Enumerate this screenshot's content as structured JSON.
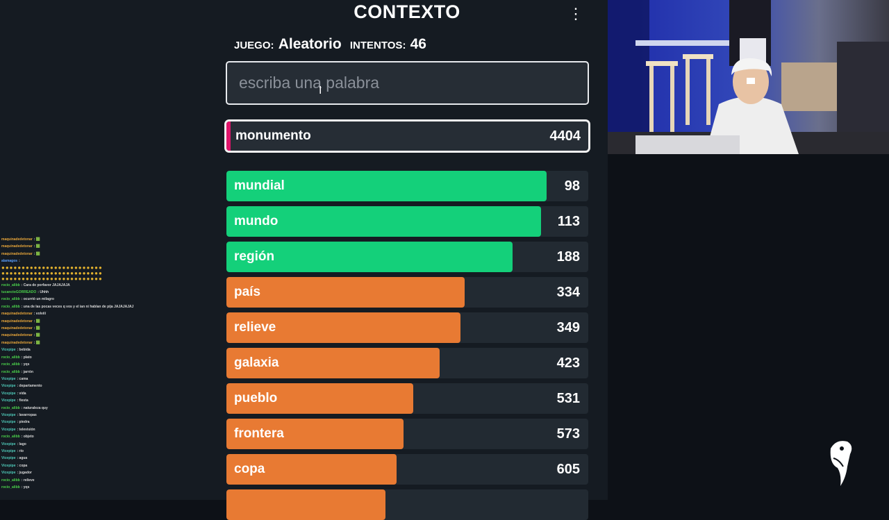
{
  "game": {
    "title": "CONTEXTO",
    "menu_icon": "kebab-menu-icon",
    "game_label": "JUEGO:",
    "game_value": "Aleatorio",
    "attempts_label": "INTENTOS:",
    "attempts_value": "46",
    "search_placeholder": "escriba una palabra",
    "current_guess": {
      "word": "monumento",
      "rank": "4404"
    },
    "colors": {
      "green": "#14d07a",
      "orange": "#e87a33",
      "pink": "#e0146a",
      "row_bg": "#222a32"
    },
    "guesses": [
      {
        "word": "mundial",
        "rank": "98",
        "fill": 0.885,
        "color": "green"
      },
      {
        "word": "mundo",
        "rank": "113",
        "fill": 0.869,
        "color": "green"
      },
      {
        "word": "región",
        "rank": "188",
        "fill": 0.791,
        "color": "green"
      },
      {
        "word": "país",
        "rank": "334",
        "fill": 0.658,
        "color": "orange"
      },
      {
        "word": "relieve",
        "rank": "349",
        "fill": 0.646,
        "color": "orange"
      },
      {
        "word": "galaxia",
        "rank": "423",
        "fill": 0.589,
        "color": "orange"
      },
      {
        "word": "pueblo",
        "rank": "531",
        "fill": 0.516,
        "color": "orange"
      },
      {
        "word": "frontera",
        "rank": "573",
        "fill": 0.489,
        "color": "orange"
      },
      {
        "word": "copa",
        "rank": "605",
        "fill": 0.47,
        "color": "orange"
      }
    ]
  },
  "chat": {
    "messages": [
      {
        "user": "maquinadedetonar",
        "text": ": 🟩",
        "color": "o"
      },
      {
        "user": "maquinadedetonar",
        "text": ": 🟩",
        "color": "o"
      },
      {
        "user": "maquinadedetonar",
        "text": ": 🟩",
        "color": "o"
      },
      {
        "user": "alamagos",
        "text": ":",
        "color": "b"
      },
      {
        "user": "rocio_alibb",
        "text": ": Cara de porfavor JAJAJAJA",
        "color": "g"
      },
      {
        "user": "tucanctoGORREADO",
        "text": ": Uhhh",
        "color": "g"
      },
      {
        "user": "rocio_alibb",
        "text": ": ocurrió un milagro",
        "color": "g"
      },
      {
        "user": "rocio_alibb",
        "text": ": una de las pocas veces q vos y el ian ni hablan de pija JAJAJAJAJ",
        "color": "g"
      },
      {
        "user": "maquinadedetonar",
        "text": ": volvííí",
        "color": "o"
      },
      {
        "user": "maquinadedetonar",
        "text": ": 🟩",
        "color": "o"
      },
      {
        "user": "maquinadedetonar",
        "text": ": 🟩",
        "color": "o"
      },
      {
        "user": "maquinadedetonar",
        "text": ": 🟩",
        "color": "o"
      },
      {
        "user": "maquinadedetonar",
        "text": ": 🟩",
        "color": "o"
      },
      {
        "user": "Vicepipe",
        "text": ": bebida",
        "color": "c"
      },
      {
        "user": "rocio_alibb",
        "text": ": plato",
        "color": "g"
      },
      {
        "user": "rocio_alibb",
        "text": ": yqs",
        "color": "g"
      },
      {
        "user": "rocio_alibb",
        "text": ": jarrón",
        "color": "g"
      },
      {
        "user": "Vicepipe",
        "text": ": cama",
        "color": "c"
      },
      {
        "user": "Vicepipe",
        "text": ": departamento",
        "color": "c"
      },
      {
        "user": "Vicepipe",
        "text": ": vida",
        "color": "c"
      },
      {
        "user": "Vicepipe",
        "text": ": fiesta",
        "color": "c"
      },
      {
        "user": "rocio_alibb",
        "text": ": naturaleza quy",
        "color": "g"
      },
      {
        "user": "Vicepipe",
        "text": ": lavarropas",
        "color": "c"
      },
      {
        "user": "Vicepipe",
        "text": ": piedra",
        "color": "c"
      },
      {
        "user": "Vicepipe",
        "text": ": televisión",
        "color": "c"
      },
      {
        "user": "rocio_alibb",
        "text": ": objeto",
        "color": "g"
      },
      {
        "user": "Vicepipe",
        "text": ": lago",
        "color": "c"
      },
      {
        "user": "Vicepipe",
        "text": ": río",
        "color": "c"
      },
      {
        "user": "Vicepipe",
        "text": ": agua",
        "color": "c"
      },
      {
        "user": "Vicepipe",
        "text": ": copa",
        "color": "c"
      },
      {
        "user": "Vicepipe",
        "text": ": jugador",
        "color": "c"
      },
      {
        "user": "rocio_alibb",
        "text": ": relieve",
        "color": "g"
      },
      {
        "user": "rocio_alibb",
        "text": ": yqs",
        "color": "g"
      }
    ]
  },
  "webcam": {
    "icon": "webcam-person-icon"
  },
  "logo": {
    "icon": "toucan-logo-icon"
  }
}
